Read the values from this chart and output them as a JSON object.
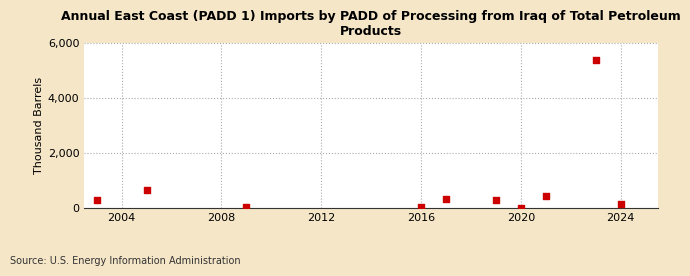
{
  "title": "Annual East Coast (PADD 1) Imports by PADD of Processing from Iraq of Total Petroleum\nProducts",
  "ylabel": "Thousand Barrels",
  "source": "Source: U.S. Energy Information Administration",
  "background_color": "#f5e6c8",
  "plot_bg_color": "#ffffff",
  "marker_color": "#cc0000",
  "marker": "s",
  "marker_size": 18,
  "data_points": [
    {
      "year": 2003,
      "value": 290
    },
    {
      "year": 2005,
      "value": 680
    },
    {
      "year": 2009,
      "value": 30
    },
    {
      "year": 2016,
      "value": 30
    },
    {
      "year": 2017,
      "value": 340
    },
    {
      "year": 2019,
      "value": 300
    },
    {
      "year": 2020,
      "value": 25
    },
    {
      "year": 2021,
      "value": 460
    },
    {
      "year": 2023,
      "value": 5380
    },
    {
      "year": 2024,
      "value": 140
    }
  ],
  "xlim": [
    2002.5,
    2025.5
  ],
  "ylim": [
    0,
    6000
  ],
  "yticks": [
    0,
    2000,
    4000,
    6000
  ],
  "xticks": [
    2004,
    2008,
    2012,
    2016,
    2020,
    2024
  ],
  "grid_color": "#aaaaaa",
  "grid_linestyle": ":",
  "title_fontsize": 9,
  "axis_fontsize": 8,
  "source_fontsize": 7
}
